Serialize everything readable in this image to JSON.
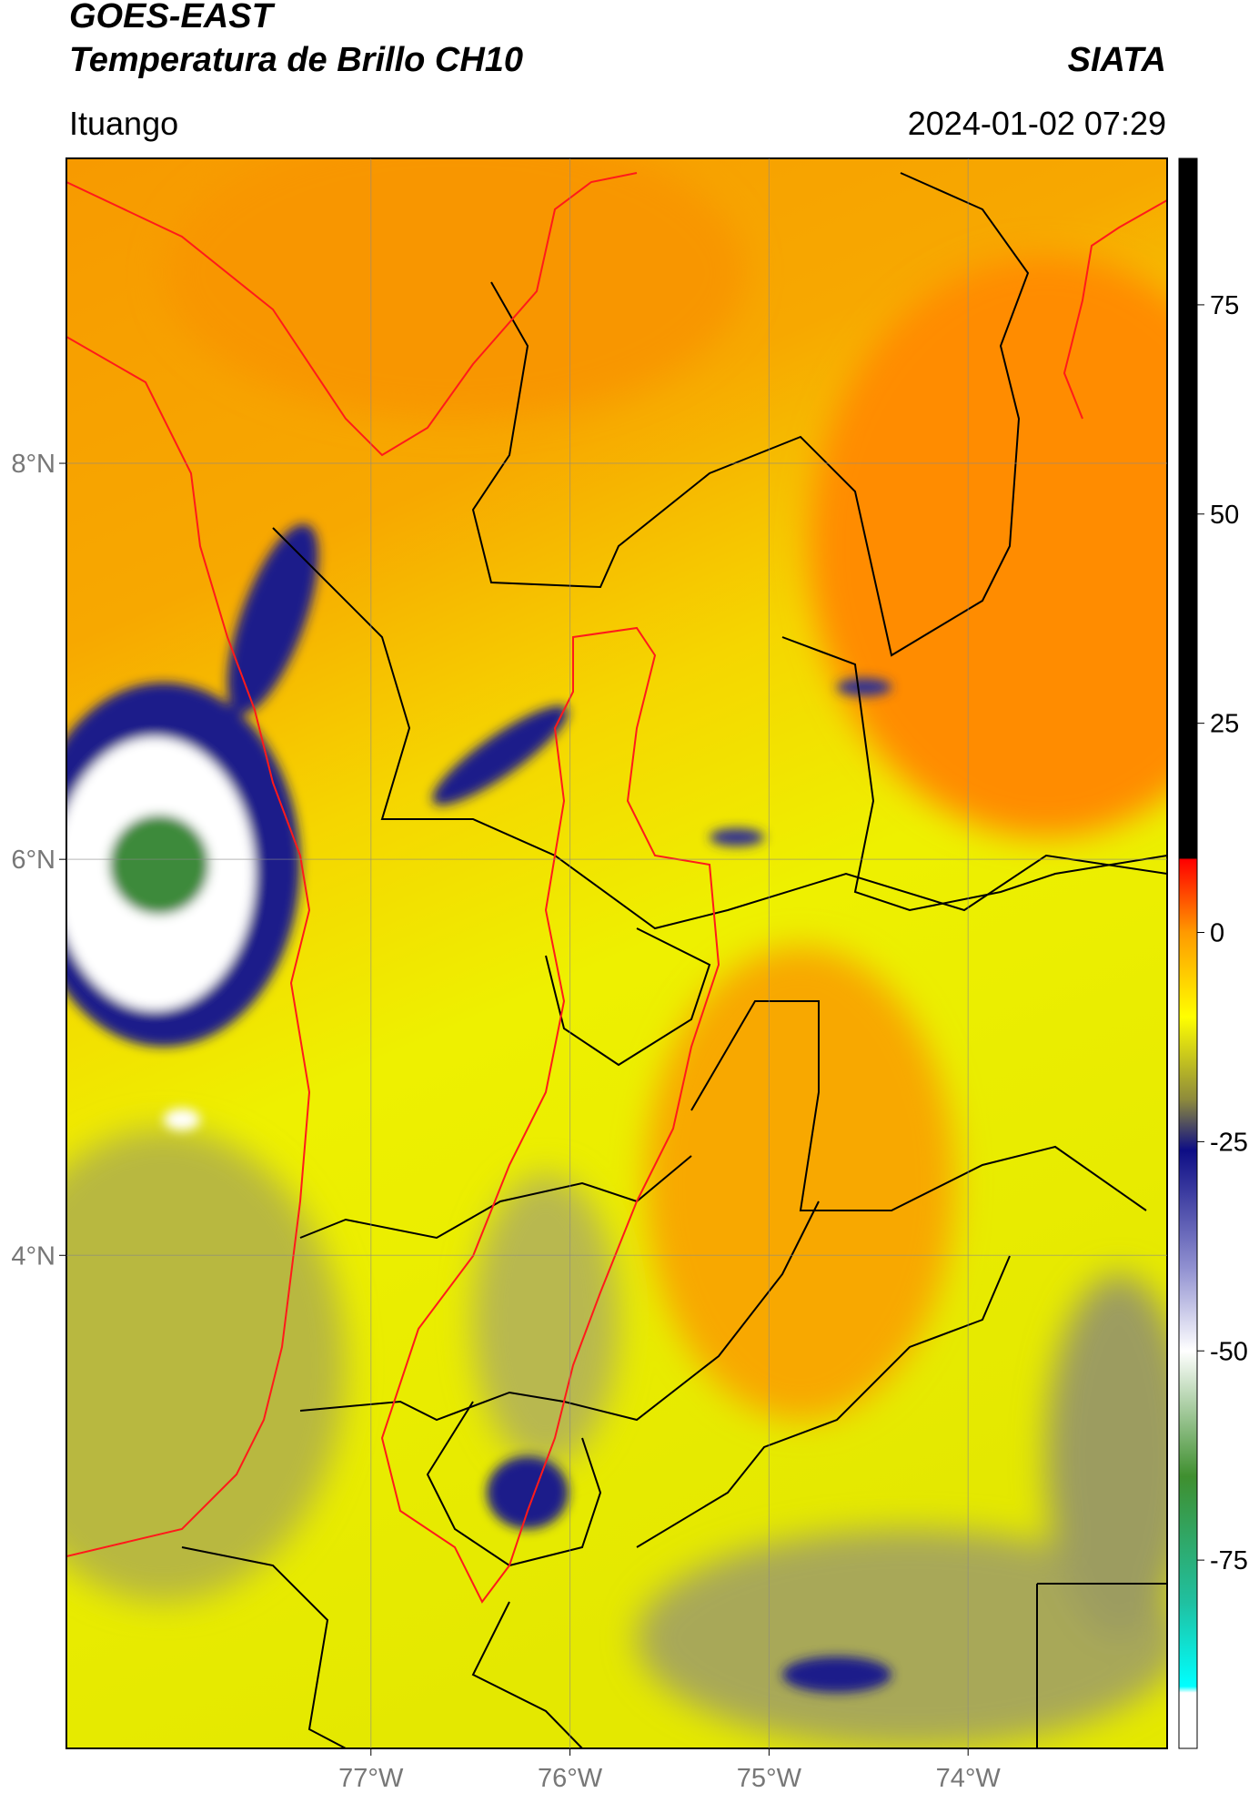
{
  "header": {
    "title_line1": "GOES-EAST",
    "title_line2": "Temperatura de Brillo CH10",
    "source": "SIATA",
    "location": "Ituango",
    "datetime": "2024-01-02 07:29"
  },
  "map": {
    "lat_range": [
      1.51,
      9.54
    ],
    "lon_range": [
      -78.53,
      -73.0
    ],
    "lat_ticks": [
      {
        "value": 8,
        "label": "8°N"
      },
      {
        "value": 6,
        "label": "6°N"
      },
      {
        "value": 4,
        "label": "4°N"
      }
    ],
    "lon_ticks": [
      {
        "value": -77,
        "label": "77°W"
      },
      {
        "value": -76,
        "label": "76°W"
      },
      {
        "value": -75,
        "label": "75°W"
      },
      {
        "value": -74,
        "label": "74°W"
      }
    ]
  },
  "colorbar": {
    "range": [
      -97.5,
      92.5
    ],
    "ticks": [
      75,
      50,
      25,
      0,
      -25,
      -50,
      -75
    ]
  }
}
